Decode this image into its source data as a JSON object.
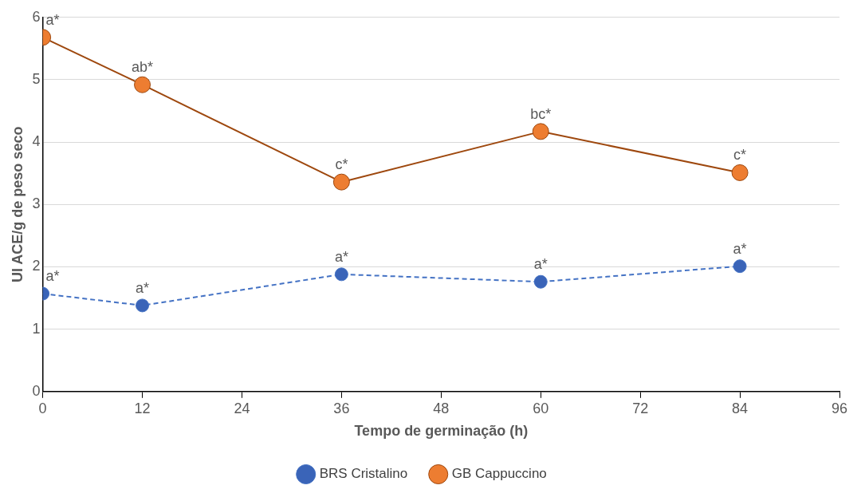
{
  "chart_data": {
    "type": "line",
    "xlabel": "Tempo de germinação (h)",
    "ylabel": "UI ACE/g de peso seco",
    "xlim": [
      0,
      96
    ],
    "xticks": [
      0,
      12,
      24,
      36,
      48,
      60,
      72,
      84,
      96
    ],
    "ylim": [
      0,
      6
    ],
    "yticks": [
      0,
      1,
      2,
      3,
      4,
      5,
      6
    ],
    "grid": "y",
    "legend": "bottom",
    "marker": "circle",
    "series": [
      {
        "name": "BRS Cristalino",
        "color": "#4472c4",
        "line_style": "dashed",
        "x": [
          0,
          12,
          36,
          60,
          84
        ],
        "values": [
          1.57,
          1.38,
          1.88,
          1.76,
          2.01
        ]
      },
      {
        "name": "GB Cappuccino",
        "color": "#9e480e",
        "line_style": "solid",
        "x": [
          0,
          12,
          36,
          60,
          84
        ],
        "values": [
          5.68,
          4.92,
          3.36,
          4.17,
          3.51
        ]
      }
    ],
    "annotations": [
      {
        "text": "a*",
        "x": 0,
        "y": 1.57
      },
      {
        "text": "a*",
        "x": 12,
        "y": 1.38
      },
      {
        "text": "a*",
        "x": 36,
        "y": 1.88
      },
      {
        "text": "a*",
        "x": 60,
        "y": 1.76
      },
      {
        "text": "a*",
        "x": 84,
        "y": 2.01
      },
      {
        "text": "a*",
        "x": 0,
        "y": 5.68
      },
      {
        "text": "ab*",
        "x": 12,
        "y": 4.92
      },
      {
        "text": "c*",
        "x": 36,
        "y": 3.36
      },
      {
        "text": "bc*",
        "x": 60,
        "y": 4.17
      },
      {
        "text": "c*",
        "x": 84,
        "y": 3.51
      }
    ]
  }
}
